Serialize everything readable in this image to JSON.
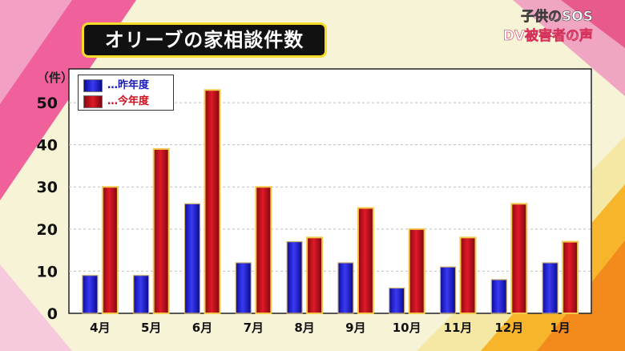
{
  "title": "オリーブの家相談件数",
  "caption": {
    "line1": "子供のSOS",
    "line2": "DV被害者の声"
  },
  "colors": {
    "blue": "#1a1ad8",
    "red": "#cc1020",
    "title_border": "#f5dc2a",
    "legend_blue_text": "#1a1ab8",
    "legend_red_text": "#cc1020"
  },
  "chart_data": {
    "type": "bar",
    "unit_label": "（件）",
    "categories": [
      "4月",
      "5月",
      "6月",
      "7月",
      "8月",
      "9月",
      "10月",
      "11月",
      "12月",
      "1月"
    ],
    "series": [
      {
        "name": "…昨年度",
        "color": "#1a1ad8",
        "values": [
          9,
          9,
          26,
          12,
          17,
          12,
          6,
          11,
          8,
          12
        ]
      },
      {
        "name": "…今年度",
        "color": "#cc1020",
        "values": [
          30,
          39,
          53,
          30,
          18,
          25,
          20,
          18,
          26,
          17
        ]
      }
    ],
    "ylim": [
      0,
      58
    ],
    "yticks": [
      0,
      10,
      20,
      30,
      40,
      50
    ],
    "grid": true,
    "legend_position": "top-left"
  }
}
